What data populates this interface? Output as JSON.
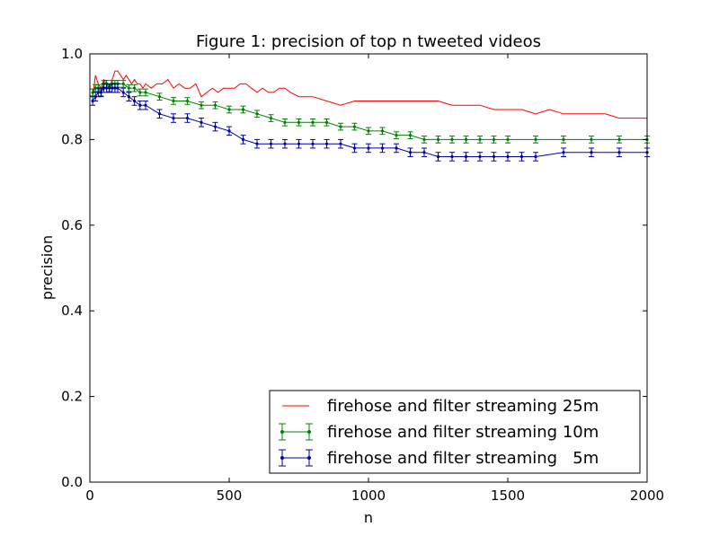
{
  "chart_data": {
    "type": "line",
    "title": "Figure 1: precision of top n tweeted videos",
    "xlabel": "n",
    "ylabel": "precision",
    "xlim": [
      0,
      2000
    ],
    "ylim": [
      0.0,
      1.0
    ],
    "xticks": [
      "0",
      "500",
      "1000",
      "1500",
      "2000"
    ],
    "yticks": [
      "0.0",
      "0.2",
      "0.4",
      "0.6",
      "0.8",
      "1.0"
    ],
    "grid": false,
    "legend_position": "lower-right",
    "series": [
      {
        "name": "firehose and filter streaming 25m",
        "color": "#ff0000",
        "error_bars": false,
        "x": [
          10,
          20,
          30,
          40,
          50,
          60,
          70,
          80,
          90,
          100,
          110,
          120,
          130,
          140,
          150,
          160,
          170,
          180,
          190,
          200,
          220,
          240,
          260,
          280,
          300,
          320,
          340,
          360,
          380,
          400,
          420,
          440,
          460,
          480,
          500,
          520,
          540,
          560,
          580,
          600,
          620,
          640,
          660,
          680,
          700,
          720,
          750,
          800,
          850,
          900,
          950,
          1000,
          1050,
          1100,
          1150,
          1200,
          1250,
          1300,
          1350,
          1400,
          1450,
          1500,
          1550,
          1600,
          1650,
          1700,
          1750,
          1800,
          1850,
          1900,
          1950,
          2000
        ],
        "y": [
          0.9,
          0.95,
          0.93,
          0.92,
          0.94,
          0.93,
          0.92,
          0.94,
          0.96,
          0.96,
          0.95,
          0.94,
          0.95,
          0.94,
          0.93,
          0.94,
          0.93,
          0.93,
          0.92,
          0.93,
          0.92,
          0.93,
          0.93,
          0.94,
          0.92,
          0.93,
          0.92,
          0.92,
          0.93,
          0.9,
          0.91,
          0.92,
          0.91,
          0.92,
          0.92,
          0.92,
          0.93,
          0.93,
          0.92,
          0.91,
          0.92,
          0.91,
          0.91,
          0.92,
          0.92,
          0.91,
          0.9,
          0.9,
          0.89,
          0.88,
          0.89,
          0.89,
          0.89,
          0.89,
          0.89,
          0.89,
          0.89,
          0.88,
          0.88,
          0.88,
          0.87,
          0.87,
          0.87,
          0.86,
          0.87,
          0.86,
          0.86,
          0.86,
          0.86,
          0.85,
          0.85,
          0.85
        ]
      },
      {
        "name": "firehose and filter streaming 10m",
        "color": "#008000",
        "error_bars": true,
        "error": 0.008,
        "x": [
          10,
          20,
          30,
          40,
          50,
          60,
          70,
          80,
          90,
          100,
          120,
          140,
          160,
          180,
          200,
          250,
          300,
          350,
          400,
          450,
          500,
          550,
          600,
          650,
          700,
          750,
          800,
          850,
          900,
          950,
          1000,
          1050,
          1100,
          1150,
          1200,
          1250,
          1300,
          1350,
          1400,
          1450,
          1500,
          1600,
          1700,
          1800,
          1900,
          2000
        ],
        "y": [
          0.91,
          0.92,
          0.92,
          0.91,
          0.93,
          0.93,
          0.92,
          0.93,
          0.93,
          0.93,
          0.93,
          0.92,
          0.92,
          0.91,
          0.91,
          0.9,
          0.89,
          0.89,
          0.88,
          0.88,
          0.87,
          0.87,
          0.86,
          0.85,
          0.84,
          0.84,
          0.84,
          0.84,
          0.83,
          0.83,
          0.82,
          0.82,
          0.81,
          0.81,
          0.8,
          0.8,
          0.8,
          0.8,
          0.8,
          0.8,
          0.8,
          0.8,
          0.8,
          0.8,
          0.8,
          0.8
        ]
      },
      {
        "name": "firehose and filter streaming   5m",
        "color": "#0000aa",
        "error_bars": true,
        "error": 0.01,
        "x": [
          10,
          20,
          30,
          40,
          50,
          60,
          70,
          80,
          90,
          100,
          120,
          140,
          160,
          180,
          200,
          250,
          300,
          350,
          400,
          450,
          500,
          550,
          600,
          650,
          700,
          750,
          800,
          850,
          900,
          950,
          1000,
          1050,
          1100,
          1150,
          1200,
          1250,
          1300,
          1350,
          1400,
          1450,
          1500,
          1550,
          1600,
          1700,
          1800,
          1900,
          2000
        ],
        "y": [
          0.89,
          0.9,
          0.91,
          0.91,
          0.92,
          0.92,
          0.92,
          0.92,
          0.92,
          0.92,
          0.91,
          0.9,
          0.89,
          0.88,
          0.88,
          0.86,
          0.85,
          0.85,
          0.84,
          0.83,
          0.82,
          0.8,
          0.79,
          0.79,
          0.79,
          0.79,
          0.79,
          0.79,
          0.79,
          0.78,
          0.78,
          0.78,
          0.78,
          0.77,
          0.77,
          0.76,
          0.76,
          0.76,
          0.76,
          0.76,
          0.76,
          0.76,
          0.76,
          0.77,
          0.77,
          0.77,
          0.77
        ]
      }
    ]
  }
}
